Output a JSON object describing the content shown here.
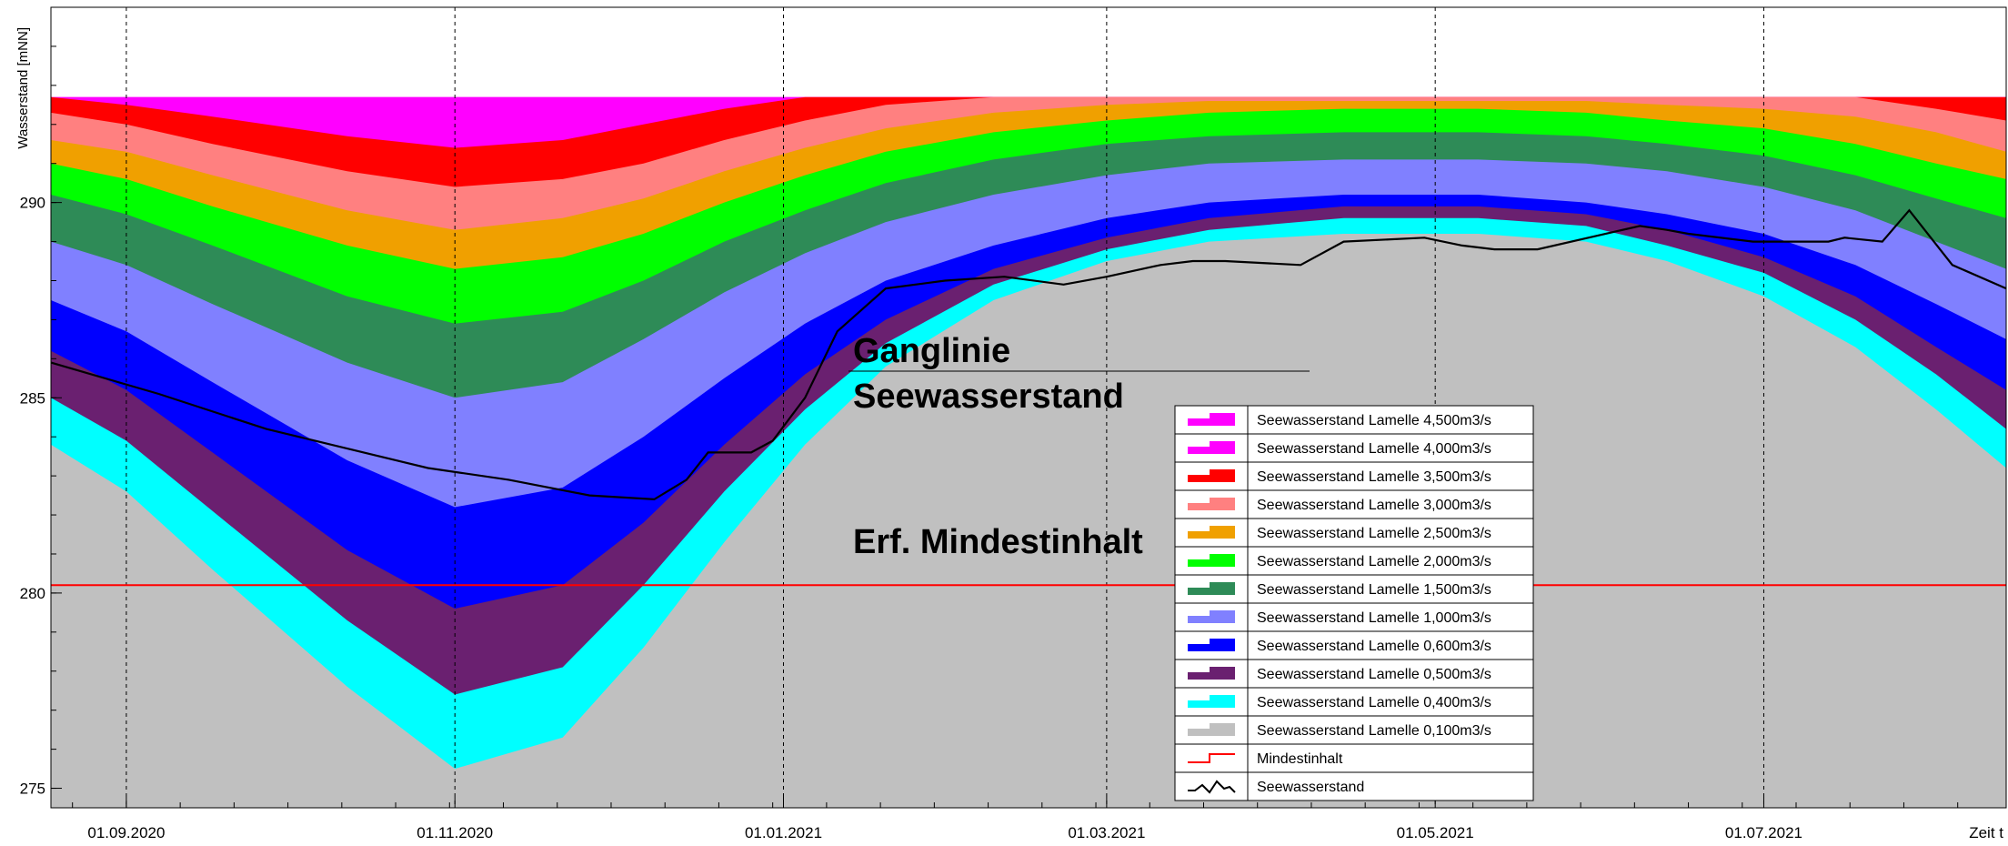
{
  "chart_data": {
    "type": "area",
    "ylabel": "Wasserstand [mNN]",
    "xlabel": "Zeit t",
    "ylim": [
      274.5,
      295.0
    ],
    "yticks": [
      275,
      280,
      285,
      290
    ],
    "x_tick_labels": [
      "01.09.2020",
      "01.11.2020",
      "01.01.2021",
      "01.03.2021",
      "01.05.2021",
      "01.07.2021"
    ],
    "x_day_range": [
      0,
      363
    ],
    "x_tick_days": [
      14,
      75,
      136,
      196,
      257,
      318
    ],
    "grid_vertical": true,
    "legend_position": "lower-right",
    "annotations": [
      "Ganglinie",
      "Seewasserstand",
      "Erf. Mindestinhalt"
    ],
    "x_days": [
      0,
      14,
      30,
      55,
      75,
      95,
      110,
      125,
      140,
      155,
      175,
      196,
      215,
      240,
      265,
      285,
      300,
      318,
      335,
      350,
      363
    ],
    "bands": [
      {
        "name": "Seewasserstand Lamelle 4,500m3/s",
        "color": "#ff00ff",
        "values": [
          292.7,
          292.7,
          292.7,
          292.7,
          292.7,
          292.7,
          292.7,
          292.7,
          292.7,
          292.7,
          292.7,
          292.7,
          292.7,
          292.7,
          292.7,
          292.7,
          292.7,
          292.7,
          292.7,
          292.7,
          292.7
        ]
      },
      {
        "name": "Seewasserstand Lamelle 4,000m3/s",
        "color": "#ff00ff",
        "values": [
          292.7,
          292.7,
          292.7,
          292.7,
          292.7,
          292.7,
          292.7,
          292.7,
          292.7,
          292.7,
          292.7,
          292.7,
          292.7,
          292.7,
          292.7,
          292.7,
          292.7,
          292.7,
          292.7,
          292.7,
          292.7
        ]
      },
      {
        "name": "Seewasserstand Lamelle 3,500m3/s",
        "color": "#ff0000",
        "values": [
          292.7,
          292.5,
          292.2,
          291.7,
          291.4,
          291.6,
          292.0,
          292.4,
          292.7,
          292.7,
          292.7,
          292.7,
          292.7,
          292.7,
          292.7,
          292.7,
          292.7,
          292.7,
          292.7,
          292.7,
          292.7
        ]
      },
      {
        "name": "Seewasserstand Lamelle 3,000m3/s",
        "color": "#ff8080",
        "values": [
          292.3,
          292.0,
          291.5,
          290.8,
          290.4,
          290.6,
          291.0,
          291.6,
          292.1,
          292.5,
          292.7,
          292.7,
          292.7,
          292.7,
          292.7,
          292.7,
          292.7,
          292.7,
          292.7,
          292.4,
          292.1
        ]
      },
      {
        "name": "Seewasserstand Lamelle 2,500m3/s",
        "color": "#f0a000",
        "values": [
          291.6,
          291.3,
          290.7,
          289.8,
          289.3,
          289.6,
          290.1,
          290.8,
          291.4,
          291.9,
          292.3,
          292.5,
          292.6,
          292.6,
          292.6,
          292.6,
          292.5,
          292.4,
          292.2,
          291.8,
          291.3
        ]
      },
      {
        "name": "Seewasserstand Lamelle 2,000m3/s",
        "color": "#00ff00",
        "values": [
          291.0,
          290.6,
          289.9,
          288.9,
          288.3,
          288.6,
          289.2,
          290.0,
          290.7,
          291.3,
          291.8,
          292.1,
          292.3,
          292.4,
          292.4,
          292.3,
          292.1,
          291.9,
          291.5,
          291.0,
          290.6
        ]
      },
      {
        "name": "Seewasserstand Lamelle 1,500m3/s",
        "color": "#2e8b57",
        "values": [
          290.2,
          289.7,
          288.9,
          287.6,
          286.9,
          287.2,
          288.0,
          289.0,
          289.8,
          290.5,
          291.1,
          291.5,
          291.7,
          291.8,
          291.8,
          291.7,
          291.5,
          291.2,
          290.7,
          290.1,
          289.6
        ]
      },
      {
        "name": "Seewasserstand Lamelle 1,000m3/s",
        "color": "#8080ff",
        "values": [
          289.0,
          288.4,
          287.4,
          285.9,
          285.0,
          285.4,
          286.5,
          287.7,
          288.7,
          289.5,
          290.2,
          290.7,
          291.0,
          291.1,
          291.1,
          291.0,
          290.8,
          290.4,
          289.8,
          289.0,
          288.3
        ]
      },
      {
        "name": "Seewasserstand Lamelle 0,600m3/s",
        "color": "#0000ff",
        "values": [
          287.5,
          286.7,
          285.4,
          283.4,
          282.2,
          282.7,
          284.0,
          285.5,
          286.9,
          288.0,
          288.9,
          289.6,
          290.0,
          290.2,
          290.2,
          290.0,
          289.7,
          289.2,
          288.4,
          287.4,
          286.5
        ]
      },
      {
        "name": "Seewasserstand Lamelle 0,500m3/s",
        "color": "#6a2070",
        "values": [
          286.2,
          285.2,
          283.6,
          281.1,
          279.6,
          280.2,
          281.8,
          283.8,
          285.6,
          287.0,
          288.3,
          289.1,
          289.6,
          289.9,
          289.9,
          289.7,
          289.3,
          288.6,
          287.6,
          286.3,
          285.2
        ]
      },
      {
        "name": "Seewasserstand Lamelle 0,400m3/s",
        "color": "#00ffff",
        "values": [
          285.0,
          283.9,
          282.1,
          279.3,
          277.4,
          278.1,
          280.2,
          282.6,
          284.7,
          286.4,
          287.9,
          288.8,
          289.3,
          289.6,
          289.6,
          289.4,
          288.9,
          288.2,
          287.0,
          285.6,
          284.2
        ]
      },
      {
        "name": "Seewasserstand Lamelle 0,100m3/s",
        "color": "#c0c0c0",
        "values": [
          283.8,
          282.6,
          280.6,
          277.6,
          275.5,
          276.3,
          278.6,
          281.3,
          283.8,
          285.8,
          287.5,
          288.5,
          289.0,
          289.2,
          289.2,
          289.0,
          288.5,
          287.6,
          286.3,
          284.7,
          283.2
        ]
      }
    ],
    "series": [
      {
        "name": "Mindestinhalt",
        "color": "#ff0000",
        "x_days": [
          0,
          363
        ],
        "values": [
          280.2,
          280.2
        ]
      },
      {
        "name": "Seewasserstand",
        "color": "#000000",
        "x_days": [
          0,
          20,
          40,
          55,
          70,
          85,
          100,
          112,
          118,
          122,
          130,
          134,
          140,
          146,
          155,
          166,
          177,
          188,
          196,
          206,
          212,
          218,
          232,
          240,
          255,
          262,
          268,
          276,
          295,
          300,
          304,
          316,
          330,
          333,
          340,
          345,
          353,
          363
        ],
        "values": [
          285.9,
          285.1,
          284.2,
          283.7,
          283.2,
          282.9,
          282.5,
          282.4,
          282.9,
          283.6,
          283.6,
          283.9,
          285.0,
          286.7,
          287.8,
          288.0,
          288.1,
          287.9,
          288.1,
          288.4,
          288.5,
          288.5,
          288.4,
          289.0,
          289.1,
          288.9,
          288.8,
          288.8,
          289.4,
          289.3,
          289.2,
          289.0,
          289.0,
          289.1,
          289.0,
          289.8,
          288.4,
          287.8
        ]
      }
    ],
    "legend": [
      {
        "label": "Seewasserstand Lamelle 4,500m3/s",
        "kind": "area",
        "color": "#ff00ff"
      },
      {
        "label": "Seewasserstand Lamelle 4,000m3/s",
        "kind": "area",
        "color": "#ff00ff"
      },
      {
        "label": "Seewasserstand Lamelle 3,500m3/s",
        "kind": "area",
        "color": "#ff0000"
      },
      {
        "label": "Seewasserstand Lamelle 3,000m3/s",
        "kind": "area",
        "color": "#ff8080"
      },
      {
        "label": "Seewasserstand Lamelle 2,500m3/s",
        "kind": "area",
        "color": "#f0a000"
      },
      {
        "label": "Seewasserstand Lamelle 2,000m3/s",
        "kind": "area",
        "color": "#00ff00"
      },
      {
        "label": "Seewasserstand Lamelle 1,500m3/s",
        "kind": "area",
        "color": "#2e8b57"
      },
      {
        "label": "Seewasserstand Lamelle 1,000m3/s",
        "kind": "area",
        "color": "#8080ff"
      },
      {
        "label": "Seewasserstand Lamelle 0,600m3/s",
        "kind": "area",
        "color": "#0000ff"
      },
      {
        "label": "Seewasserstand Lamelle 0,500m3/s",
        "kind": "area",
        "color": "#6a2070"
      },
      {
        "label": "Seewasserstand Lamelle 0,400m3/s",
        "kind": "area",
        "color": "#00ffff"
      },
      {
        "label": "Seewasserstand Lamelle 0,100m3/s",
        "kind": "area",
        "color": "#c0c0c0"
      },
      {
        "label": "Mindestinhalt",
        "kind": "line",
        "color": "#ff0000"
      },
      {
        "label": "Seewasserstand",
        "kind": "wiggle",
        "color": "#000000"
      }
    ]
  }
}
